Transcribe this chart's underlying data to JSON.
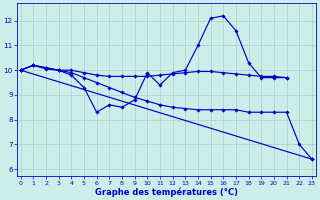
{
  "xlabel": "Graphe des températures (°C)",
  "background_color": "#cceee8",
  "grid_color": "#aacccc",
  "line_color": "#0000cc",
  "marker": "D",
  "markersize": 1.8,
  "linewidth": 0.85,
  "ylim": [
    5.7,
    12.7
  ],
  "xlim": [
    -0.3,
    23.3
  ],
  "yticks": [
    6,
    7,
    8,
    9,
    10,
    11,
    12
  ],
  "xticks": [
    0,
    1,
    2,
    3,
    4,
    5,
    6,
    7,
    8,
    9,
    10,
    11,
    12,
    13,
    14,
    15,
    16,
    17,
    18,
    19,
    20,
    21,
    22,
    23
  ],
  "series": [
    {
      "x": [
        0,
        1,
        2,
        3,
        4,
        5,
        6,
        7,
        8,
        9,
        10,
        11,
        12,
        13,
        14,
        15,
        16,
        17,
        18,
        19,
        20,
        21
      ],
      "y": [
        10.0,
        10.2,
        10.1,
        10.0,
        9.8,
        9.3,
        8.3,
        8.6,
        8.5,
        8.8,
        9.9,
        9.4,
        9.9,
        10.0,
        11.0,
        12.1,
        12.2,
        11.6,
        10.3,
        9.7,
        9.7,
        9.7
      ]
    },
    {
      "x": [
        0,
        1,
        2,
        3,
        4,
        5,
        6,
        7,
        8,
        9,
        10,
        11,
        12,
        13,
        14,
        15,
        16,
        17,
        18,
        19,
        20,
        21
      ],
      "y": [
        10.0,
        10.2,
        10.05,
        10.0,
        10.0,
        9.9,
        9.8,
        9.75,
        9.75,
        9.75,
        9.75,
        9.8,
        9.85,
        9.9,
        9.95,
        9.95,
        9.9,
        9.85,
        9.8,
        9.75,
        9.75,
        9.7
      ]
    },
    {
      "x": [
        0,
        1,
        2,
        3,
        4,
        5,
        6,
        7,
        8,
        9,
        10,
        11,
        12,
        13,
        14,
        15,
        16,
        17,
        18,
        19,
        20,
        21,
        22,
        23
      ],
      "y": [
        10.0,
        10.2,
        10.1,
        10.0,
        9.9,
        9.7,
        9.5,
        9.3,
        9.1,
        8.9,
        8.75,
        8.6,
        8.5,
        8.45,
        8.4,
        8.4,
        8.4,
        8.4,
        8.3,
        8.3,
        8.3,
        8.3,
        7.0,
        6.4
      ]
    },
    {
      "x": [
        0,
        23
      ],
      "y": [
        10.0,
        6.4
      ]
    }
  ]
}
